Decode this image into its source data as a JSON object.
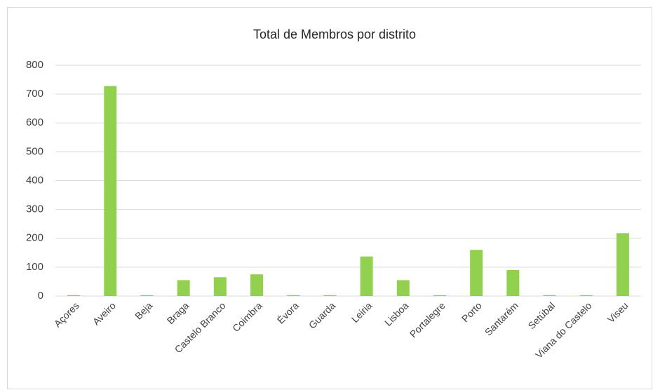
{
  "chart_data": {
    "type": "bar",
    "title": "Total de Membros por distrito",
    "categories": [
      "Açores",
      "Aveiro",
      "Beja",
      "Braga",
      "Castelo Branco",
      "Coimbra",
      "Évora",
      "Guarda",
      "Leiria",
      "Lisboa",
      "Portalegre",
      "Porto",
      "Santarém",
      "Setúbal",
      "Viana do Castelo",
      "Viseu"
    ],
    "values": [
      3,
      728,
      3,
      55,
      65,
      75,
      3,
      3,
      137,
      55,
      3,
      160,
      90,
      3,
      3,
      218
    ],
    "color": "#92d050",
    "ylim": [
      0,
      800
    ],
    "yticks": [
      0,
      100,
      200,
      300,
      400,
      500,
      600,
      700,
      800
    ],
    "grid": true
  }
}
